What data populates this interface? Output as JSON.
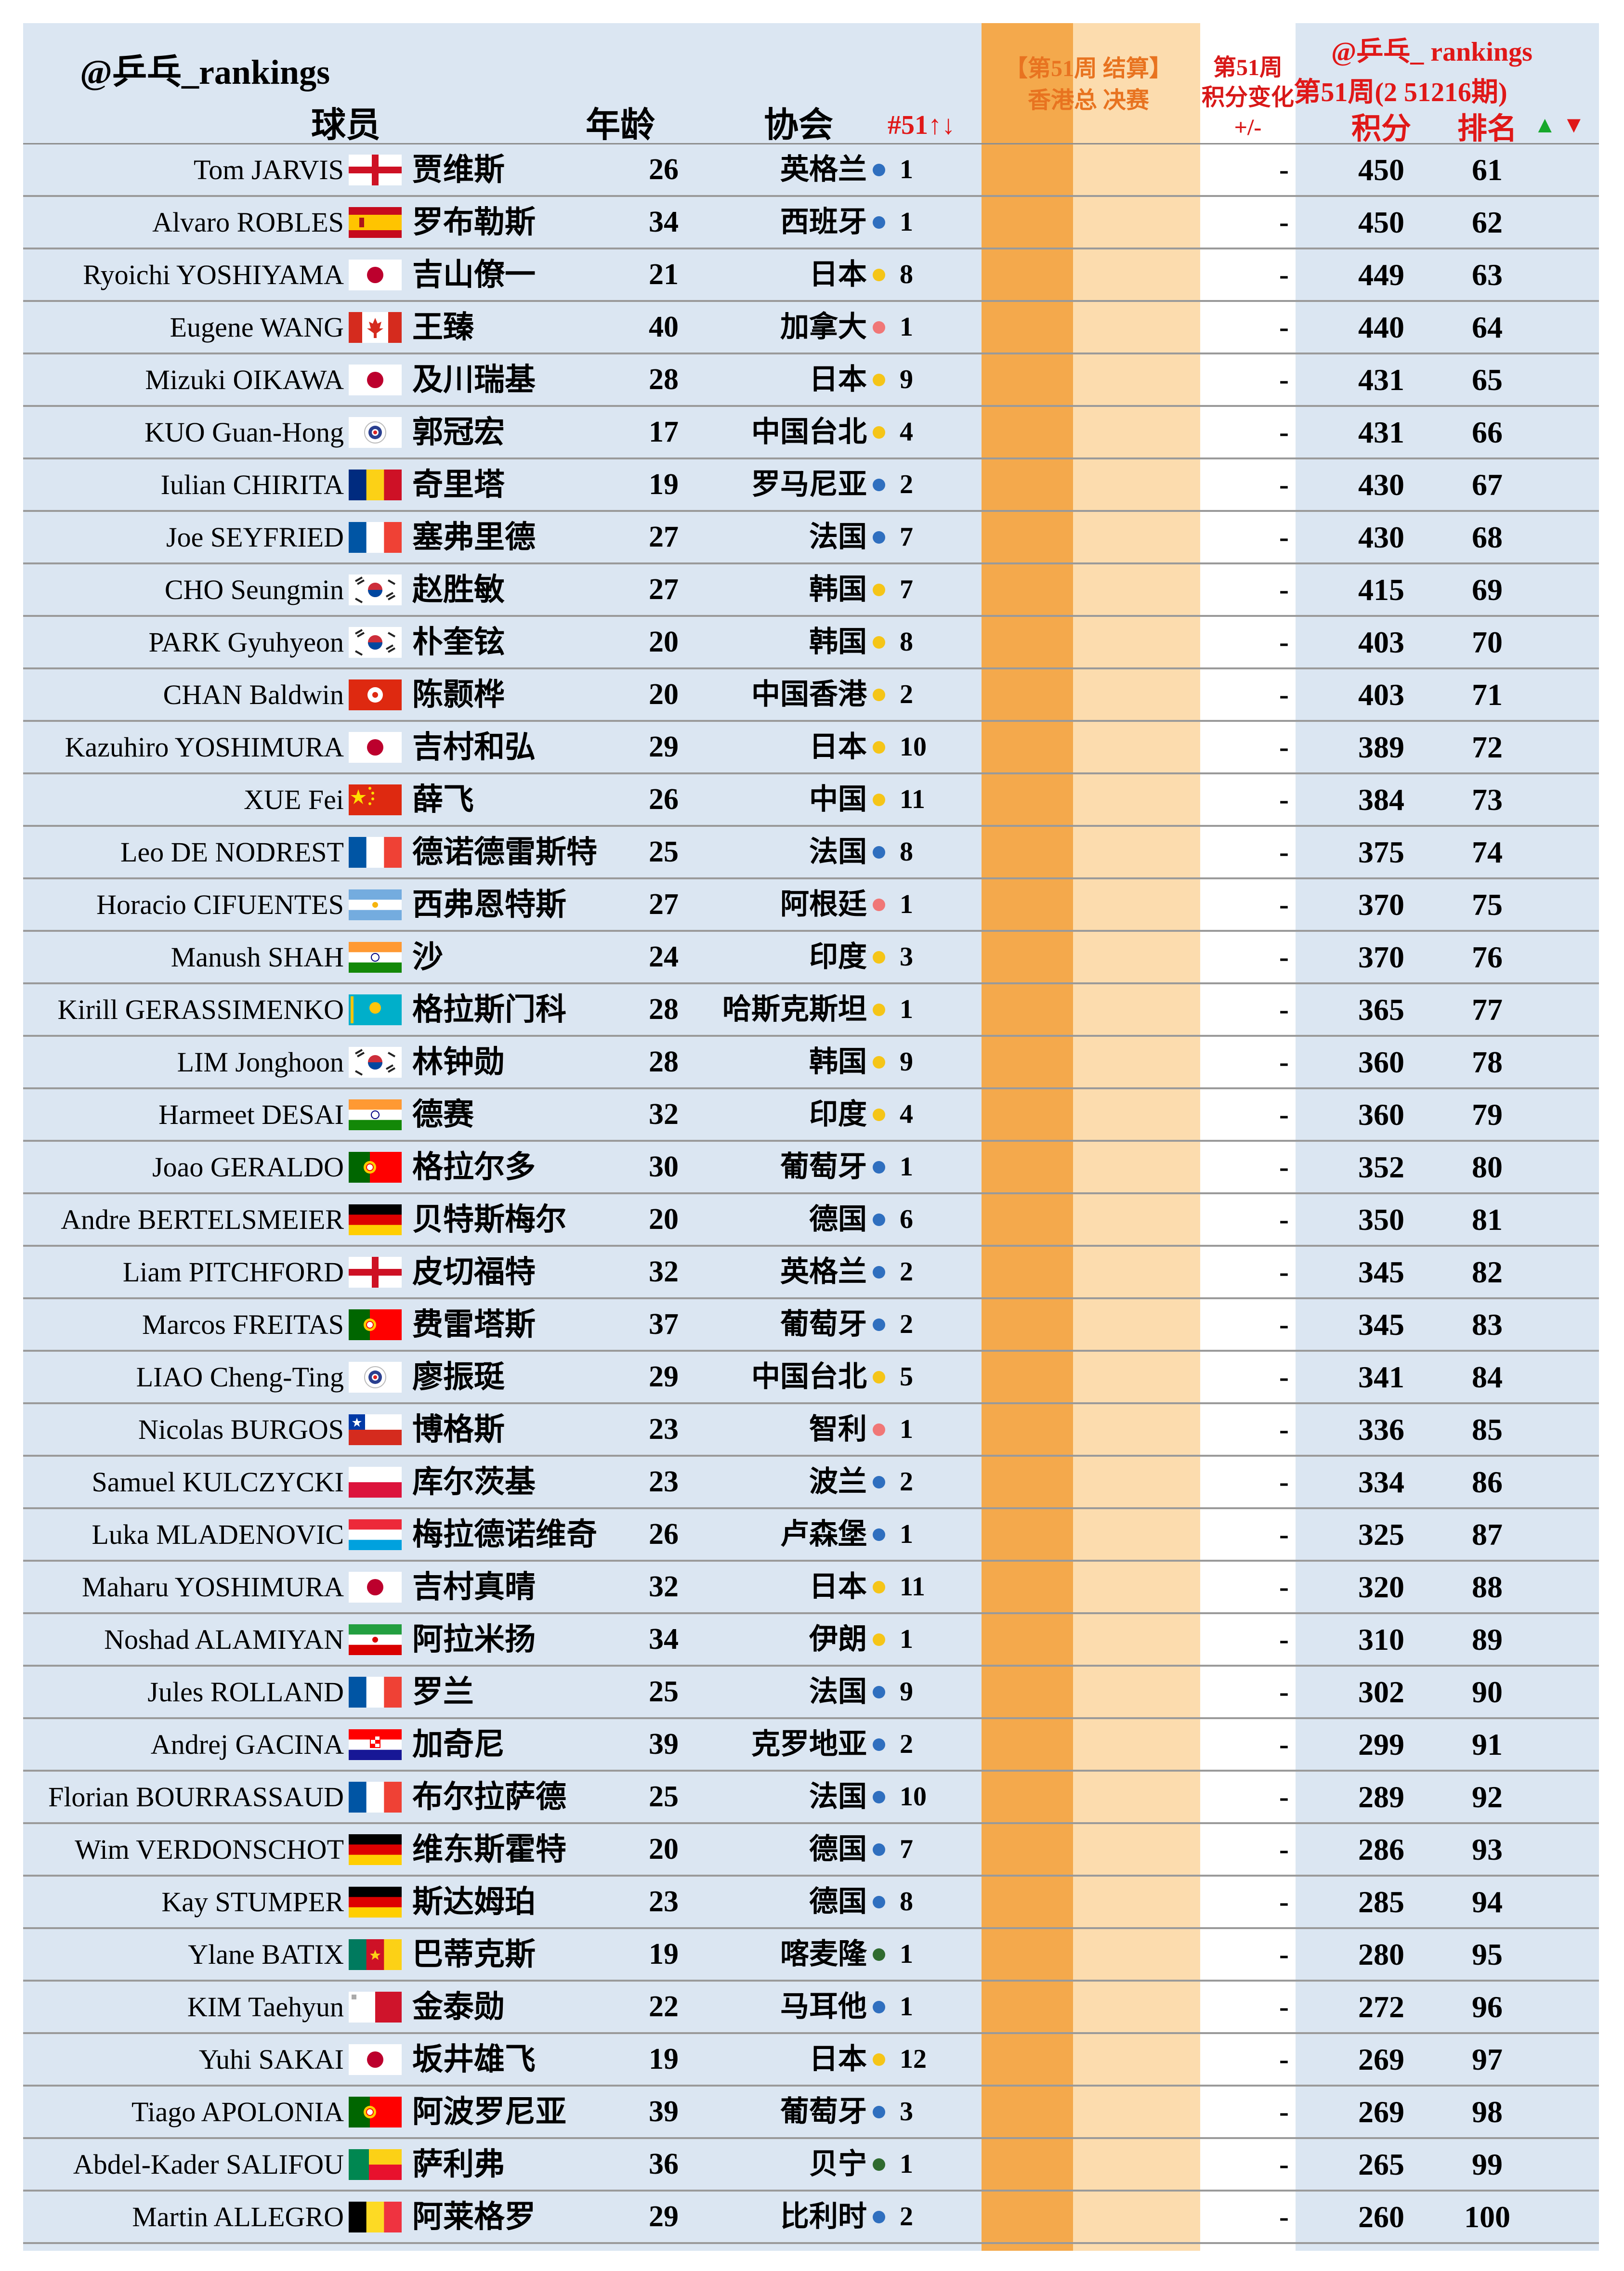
{
  "header": {
    "handle": "@乒乓_rankings",
    "col_player": "球员",
    "col_age": "年龄",
    "col_assoc": "协会",
    "col_rank51": "#51↑↓",
    "settle_line1": "【第51周 结算】",
    "settle_line2": "香港总 决赛",
    "change_line1": "第51周",
    "change_line2": "积分变化",
    "change_line3": "+/-",
    "handle2": "@乒乓_ rankings",
    "week": "第51周(2 51216期)",
    "col_points": "积分",
    "col_rank": "排名",
    "up_arrow": "▲",
    "down_arrow": "▼"
  },
  "colors": {
    "orange_col": "#f4a94c",
    "light_orange_col": "#fcdcae",
    "row_bg": "#dbe6f2",
    "blue_dot": "#2f6fbf",
    "yellow_dot": "#f5c518",
    "pink_dot": "#f07777",
    "green_dot": "#2f6b2f",
    "header_red": "#e01818"
  },
  "rows": [
    {
      "en": "Tom JARVIS",
      "flag": "eng",
      "cn": "贾维斯",
      "age": "26",
      "assoc": "英格兰",
      "dot": "blue",
      "wk": "1",
      "chg": "-",
      "pts": "450",
      "rank": "61"
    },
    {
      "en": "Alvaro ROBLES",
      "flag": "esp",
      "cn": "罗布勒斯",
      "age": "34",
      "assoc": "西班牙",
      "dot": "blue",
      "wk": "1",
      "chg": "-",
      "pts": "450",
      "rank": "62"
    },
    {
      "en": "Ryoichi YOSHIYAMA",
      "flag": "jpn",
      "cn": "吉山僚一",
      "age": "21",
      "assoc": "日本",
      "dot": "yellow",
      "wk": "8",
      "chg": "-",
      "pts": "449",
      "rank": "63"
    },
    {
      "en": "Eugene WANG",
      "flag": "can",
      "cn": "王臻",
      "age": "40",
      "assoc": "加拿大",
      "dot": "pink",
      "wk": "1",
      "chg": "-",
      "pts": "440",
      "rank": "64"
    },
    {
      "en": "Mizuki OIKAWA",
      "flag": "jpn",
      "cn": "及川瑞基",
      "age": "28",
      "assoc": "日本",
      "dot": "yellow",
      "wk": "9",
      "chg": "-",
      "pts": "431",
      "rank": "65"
    },
    {
      "en": "KUO Guan-Hong",
      "flag": "tpe",
      "cn": "郭冠宏",
      "age": "17",
      "assoc": "中国台北",
      "dot": "yellow",
      "wk": "4",
      "chg": "-",
      "pts": "431",
      "rank": "66"
    },
    {
      "en": "Iulian CHIRITA",
      "flag": "rou",
      "cn": "奇里塔",
      "age": "19",
      "assoc": "罗马尼亚",
      "dot": "blue",
      "wk": "2",
      "chg": "-",
      "pts": "430",
      "rank": "67"
    },
    {
      "en": "Joe SEYFRIED",
      "flag": "fra",
      "cn": "塞弗里德",
      "age": "27",
      "assoc": "法国",
      "dot": "blue",
      "wk": "7",
      "chg": "-",
      "pts": "430",
      "rank": "68"
    },
    {
      "en": "CHO Seungmin",
      "flag": "kor",
      "cn": "赵胜敏",
      "age": "27",
      "assoc": "韩国",
      "dot": "yellow",
      "wk": "7",
      "chg": "-",
      "pts": "415",
      "rank": "69"
    },
    {
      "en": "PARK Gyuhyeon",
      "flag": "kor",
      "cn": "朴奎铉",
      "age": "20",
      "assoc": "韩国",
      "dot": "yellow",
      "wk": "8",
      "chg": "-",
      "pts": "403",
      "rank": "70"
    },
    {
      "en": "CHAN Baldwin",
      "flag": "hkg",
      "cn": "陈颢桦",
      "age": "20",
      "assoc": "中国香港",
      "dot": "yellow",
      "wk": "2",
      "chg": "-",
      "pts": "403",
      "rank": "71"
    },
    {
      "en": "Kazuhiro YOSHIMURA",
      "flag": "jpn",
      "cn": "吉村和弘",
      "age": "29",
      "assoc": "日本",
      "dot": "yellow",
      "wk": "10",
      "chg": "-",
      "pts": "389",
      "rank": "72"
    },
    {
      "en": "XUE Fei",
      "flag": "chn",
      "cn": "薛飞",
      "age": "26",
      "assoc": "中国",
      "dot": "yellow",
      "wk": "11",
      "chg": "-",
      "pts": "384",
      "rank": "73"
    },
    {
      "en": "Leo DE NODREST",
      "flag": "fra",
      "cn": "德诺德雷斯特",
      "age": "25",
      "assoc": "法国",
      "dot": "blue",
      "wk": "8",
      "chg": "-",
      "pts": "375",
      "rank": "74"
    },
    {
      "en": "Horacio CIFUENTES",
      "flag": "arg",
      "cn": "西弗恩特斯",
      "age": "27",
      "assoc": "阿根廷",
      "dot": "pink",
      "wk": "1",
      "chg": "-",
      "pts": "370",
      "rank": "75"
    },
    {
      "en": "Manush SHAH",
      "flag": "ind",
      "cn": "沙",
      "age": "24",
      "assoc": "印度",
      "dot": "yellow",
      "wk": "3",
      "chg": "-",
      "pts": "370",
      "rank": "76"
    },
    {
      "en": "Kirill GERASSIMENKO",
      "flag": "kaz",
      "cn": "格拉斯门科",
      "age": "28",
      "assoc": "哈斯克斯坦",
      "dot": "yellow",
      "wk": "1",
      "chg": "-",
      "pts": "365",
      "rank": "77"
    },
    {
      "en": "LIM Jonghoon",
      "flag": "kor",
      "cn": "林钟勋",
      "age": "28",
      "assoc": "韩国",
      "dot": "yellow",
      "wk": "9",
      "chg": "-",
      "pts": "360",
      "rank": "78"
    },
    {
      "en": "Harmeet DESAI",
      "flag": "ind",
      "cn": "德赛",
      "age": "32",
      "assoc": "印度",
      "dot": "yellow",
      "wk": "4",
      "chg": "-",
      "pts": "360",
      "rank": "79"
    },
    {
      "en": "Joao GERALDO",
      "flag": "por",
      "cn": "格拉尔多",
      "age": "30",
      "assoc": "葡萄牙",
      "dot": "blue",
      "wk": "1",
      "chg": "-",
      "pts": "352",
      "rank": "80"
    },
    {
      "en": "Andre BERTELSMEIER",
      "flag": "ger",
      "cn": "贝特斯梅尔",
      "age": "20",
      "assoc": "德国",
      "dot": "blue",
      "wk": "6",
      "chg": "-",
      "pts": "350",
      "rank": "81"
    },
    {
      "en": "Liam PITCHFORD",
      "flag": "eng",
      "cn": "皮切福特",
      "age": "32",
      "assoc": "英格兰",
      "dot": "blue",
      "wk": "2",
      "chg": "-",
      "pts": "345",
      "rank": "82"
    },
    {
      "en": "Marcos FREITAS",
      "flag": "por",
      "cn": "费雷塔斯",
      "age": "37",
      "assoc": "葡萄牙",
      "dot": "blue",
      "wk": "2",
      "chg": "-",
      "pts": "345",
      "rank": "83"
    },
    {
      "en": "LIAO Cheng-Ting",
      "flag": "tpe",
      "cn": "廖振珽",
      "age": "29",
      "assoc": "中国台北",
      "dot": "yellow",
      "wk": "5",
      "chg": "-",
      "pts": "341",
      "rank": "84"
    },
    {
      "en": "Nicolas BURGOS",
      "flag": "chi",
      "cn": "博格斯",
      "age": "23",
      "assoc": "智利",
      "dot": "pink",
      "wk": "1",
      "chg": "-",
      "pts": "336",
      "rank": "85"
    },
    {
      "en": "Samuel KULCZYCKI",
      "flag": "pol",
      "cn": "库尔茨基",
      "age": "23",
      "assoc": "波兰",
      "dot": "blue",
      "wk": "2",
      "chg": "-",
      "pts": "334",
      "rank": "86"
    },
    {
      "en": "Luka MLADENOVIC",
      "flag": "lux",
      "cn": "梅拉德诺维奇",
      "age": "26",
      "assoc": "卢森堡",
      "dot": "blue",
      "wk": "1",
      "chg": "-",
      "pts": "325",
      "rank": "87"
    },
    {
      "en": "Maharu YOSHIMURA",
      "flag": "jpn",
      "cn": "吉村真晴",
      "age": "32",
      "assoc": "日本",
      "dot": "yellow",
      "wk": "11",
      "chg": "-",
      "pts": "320",
      "rank": "88"
    },
    {
      "en": "Noshad ALAMIYAN",
      "flag": "iri",
      "cn": "阿拉米扬",
      "age": "34",
      "assoc": "伊朗",
      "dot": "yellow",
      "wk": "1",
      "chg": "-",
      "pts": "310",
      "rank": "89"
    },
    {
      "en": "Jules ROLLAND",
      "flag": "fra",
      "cn": "罗兰",
      "age": "25",
      "assoc": "法国",
      "dot": "blue",
      "wk": "9",
      "chg": "-",
      "pts": "302",
      "rank": "90"
    },
    {
      "en": "Andrej GACINA",
      "flag": "cro",
      "cn": "加奇尼",
      "age": "39",
      "assoc": "克罗地亚",
      "dot": "blue",
      "wk": "2",
      "chg": "-",
      "pts": "299",
      "rank": "91"
    },
    {
      "en": "Florian BOURRASSAUD",
      "flag": "fra",
      "cn": "布尔拉萨德",
      "age": "25",
      "assoc": "法国",
      "dot": "blue",
      "wk": "10",
      "chg": "-",
      "pts": "289",
      "rank": "92"
    },
    {
      "en": "Wim VERDONSCHOT",
      "flag": "ger",
      "cn": "维东斯霍特",
      "age": "20",
      "assoc": "德国",
      "dot": "blue",
      "wk": "7",
      "chg": "-",
      "pts": "286",
      "rank": "93"
    },
    {
      "en": "Kay STUMPER",
      "flag": "ger",
      "cn": "斯达姆珀",
      "age": "23",
      "assoc": "德国",
      "dot": "blue",
      "wk": "8",
      "chg": "-",
      "pts": "285",
      "rank": "94"
    },
    {
      "en": "Ylane BATIX",
      "flag": "cmr",
      "cn": "巴蒂克斯",
      "age": "19",
      "assoc": "喀麦隆",
      "dot": "green",
      "wk": "1",
      "chg": "-",
      "pts": "280",
      "rank": "95"
    },
    {
      "en": "KIM Taehyun",
      "flag": "mlt",
      "cn": "金泰勋",
      "age": "22",
      "assoc": "马耳他",
      "dot": "blue",
      "wk": "1",
      "chg": "-",
      "pts": "272",
      "rank": "96"
    },
    {
      "en": "Yuhi SAKAI",
      "flag": "jpn",
      "cn": "坂井雄飞",
      "age": "19",
      "assoc": "日本",
      "dot": "yellow",
      "wk": "12",
      "chg": "-",
      "pts": "269",
      "rank": "97"
    },
    {
      "en": "Tiago APOLONIA",
      "flag": "por",
      "cn": "阿波罗尼亚",
      "age": "39",
      "assoc": "葡萄牙",
      "dot": "blue",
      "wk": "3",
      "chg": "-",
      "pts": "269",
      "rank": "98"
    },
    {
      "en": "Abdel-Kader SALIFOU",
      "flag": "ben",
      "cn": "萨利弗",
      "age": "36",
      "assoc": "贝宁",
      "dot": "green",
      "wk": "1",
      "chg": "-",
      "pts": "265",
      "rank": "99"
    },
    {
      "en": "Martin ALLEGRO",
      "flag": "bel",
      "cn": "阿莱格罗",
      "age": "29",
      "assoc": "比利时",
      "dot": "blue",
      "wk": "2",
      "chg": "-",
      "pts": "260",
      "rank": "100"
    }
  ]
}
